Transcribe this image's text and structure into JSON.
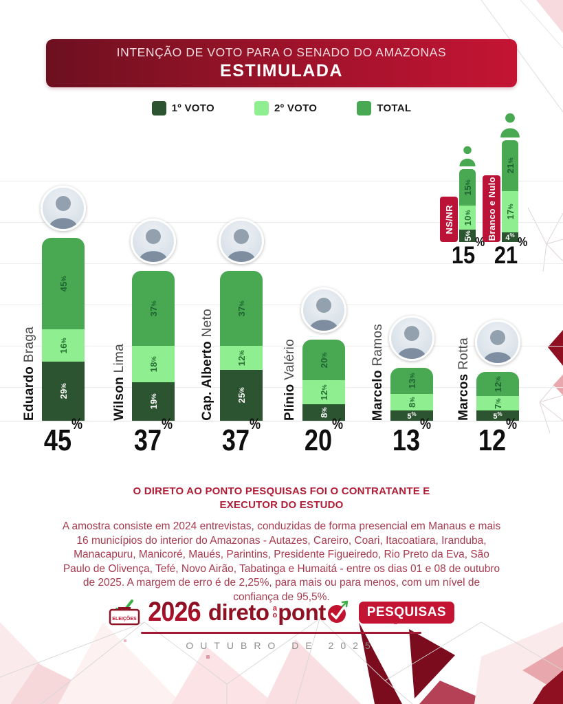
{
  "banner": {
    "title": "INTENÇÃO DE VOTO PARA O SENADO DO AMAZONAS",
    "subtitle": "ESTIMULADA"
  },
  "legend": {
    "items": [
      {
        "label": "1º VOTO",
        "color": "#2d5430"
      },
      {
        "label": "2º VOTO",
        "color": "#8fee8f"
      },
      {
        "label": "TOTAL",
        "color": "#48a952"
      }
    ]
  },
  "chart_data": {
    "type": "bar",
    "stacked": true,
    "series_names": [
      "1º VOTO",
      "2º VOTO",
      "TOTAL"
    ],
    "unit": "%",
    "candidates": [
      {
        "first": "Eduardo",
        "last": "Braga",
        "voto1": 29,
        "voto2": 16,
        "total": 45
      },
      {
        "first": "Wilson",
        "last": "Lima",
        "voto1": 19,
        "voto2": 18,
        "total": 37
      },
      {
        "first": "Cap. Alberto",
        "last": "Neto",
        "voto1": 25,
        "voto2": 12,
        "total": 37
      },
      {
        "first": "Plínio",
        "last": "Valério",
        "voto1": 8,
        "voto2": 12,
        "total": 20
      },
      {
        "first": "Marcelo",
        "last": "Ramos",
        "voto1": 5,
        "voto2": 8,
        "total": 13
      },
      {
        "first": "Marcos",
        "last": "Rotta",
        "voto1": 5,
        "voto2": 7,
        "total": 12
      }
    ],
    "others": [
      {
        "label": "NS/NR",
        "voto1": 5,
        "voto2": 10,
        "total": 15
      },
      {
        "label": "Branco e Nulo",
        "voto1": 4,
        "voto2": 17,
        "total": 21
      }
    ]
  },
  "colors": {
    "voto1": "#2d5430",
    "voto2": "#8fee8f",
    "total": "#48a952",
    "voto1_text": "#ffffff",
    "voto2_text": "#237031",
    "total_text": "#1d6330",
    "chip": "#bb1238",
    "person_icon": "#48a952"
  },
  "methodology": {
    "heading": "O DIRETO AO PONTO PESQUISAS FOI O CONTRATANTE E EXECUTOR DO ESTUDO",
    "body": "A amostra consiste em 2024 entrevistas, conduzidas de forma presencial em Manaus e mais 16 municípios do interior do Amazonas - Autazes, Careiro, Coari, Itacoatiara, Iranduba, Manacapuru, Manicoré, Maués, Parintins, Presidente Figueiredo, Rio Preto da Eva, São Paulo de Olivença, Tefé, Novo Airão, Tabatinga e Humaitá - entre os dias 01 e 08 de outubro de 2025. A margem de erro é de 2,25%, para mais ou para menos, com um nível de confiança de 95,5%."
  },
  "footer": {
    "ballot_label": "ELEIÇÕES",
    "year": "2026",
    "brand_word1": "direto",
    "brand_mid_top": "a",
    "brand_mid_bottom": "o",
    "brand_word2": "pont",
    "brand_badge": "PESQUISAS",
    "date_line": "OUTUBRO DE 2025"
  }
}
